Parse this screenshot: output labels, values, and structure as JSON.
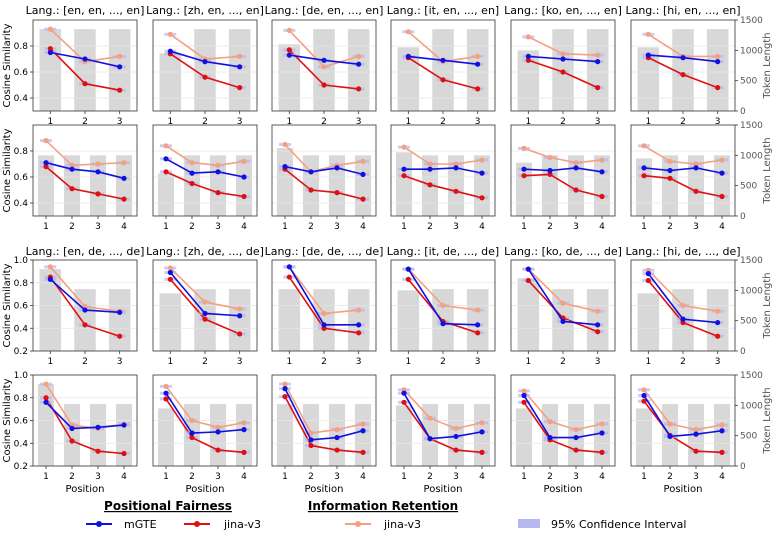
{
  "colors": {
    "mgte": "#1010e0",
    "jina_pf": "#e01010",
    "jina_ir": "#f5a080",
    "bar": "#d8d8d8",
    "ci": "#b8b8f0",
    "grid": "#e6e6e6",
    "axis": "#333333"
  },
  "labels": {
    "ylabel_left": "Cosine Similarity",
    "ylabel_right": "Token Length",
    "xlabel": "Position"
  },
  "legend": {
    "positional_fairness": "Positional Fairness",
    "information_retention": "Information Retention",
    "mgte": "mGTE",
    "jina_v3": "jina-v3",
    "jina_v3_ir": "jina-v3",
    "ci": "95% Confidence Interval"
  },
  "chart_data": [
    {
      "type": "line",
      "group": "group-1",
      "ylim_cos": [
        0.3,
        1.0
      ],
      "ylim_tokens": [
        0,
        1500
      ],
      "cos_ticks": [
        "0.4",
        "0.6",
        "0.8"
      ],
      "token_ticks": [
        "0",
        "500",
        "1000",
        "1500"
      ],
      "panels": [
        {
          "title": "Lang.: [en, en, ..., en]",
          "rows": [
            {
              "x": [
                1,
                2,
                3
              ],
              "mgte": [
                0.75,
                0.7,
                0.64
              ],
              "jina_v3": [
                0.78,
                0.51,
                0.46
              ],
              "jina_v3_ir": [
                0.93,
                0.68,
                0.72
              ],
              "tokens": [
                1350,
                1350,
                1350
              ]
            },
            {
              "x": [
                1,
                2,
                3,
                4
              ],
              "mgte": [
                0.71,
                0.66,
                0.64,
                0.59
              ],
              "jina_v3": [
                0.68,
                0.51,
                0.47,
                0.43
              ],
              "jina_v3_ir": [
                0.88,
                0.69,
                0.7,
                0.71
              ],
              "tokens": [
                1000,
                1000,
                1000,
                1000
              ]
            }
          ]
        },
        {
          "title": "Lang.: [zh, en, ..., en]",
          "rows": [
            {
              "x": [
                1,
                2,
                3
              ],
              "mgte": [
                0.76,
                0.68,
                0.64
              ],
              "jina_v3": [
                0.74,
                0.56,
                0.48
              ],
              "jina_v3_ir": [
                0.89,
                0.7,
                0.72
              ],
              "tokens": [
                950,
                1350,
                1350
              ]
            },
            {
              "x": [
                1,
                2,
                3,
                4
              ],
              "mgte": [
                0.74,
                0.63,
                0.64,
                0.6
              ],
              "jina_v3": [
                0.64,
                0.55,
                0.48,
                0.45
              ],
              "jina_v3_ir": [
                0.84,
                0.71,
                0.69,
                0.72
              ],
              "tokens": [
                700,
                1000,
                1000,
                1000
              ]
            }
          ]
        },
        {
          "title": "Lang.: [de, en, ..., en]",
          "rows": [
            {
              "x": [
                1,
                2,
                3
              ],
              "mgte": [
                0.73,
                0.69,
                0.66
              ],
              "jina_v3": [
                0.77,
                0.5,
                0.47
              ],
              "jina_v3_ir": [
                0.92,
                0.64,
                0.72
              ],
              "tokens": [
                1100,
                1350,
                1350
              ]
            },
            {
              "x": [
                1,
                2,
                3,
                4
              ],
              "mgte": [
                0.68,
                0.64,
                0.67,
                0.62
              ],
              "jina_v3": [
                0.66,
                0.5,
                0.48,
                0.43
              ],
              "jina_v3_ir": [
                0.85,
                0.64,
                0.69,
                0.72
              ],
              "tokens": [
                1120,
                1000,
                1000,
                1000
              ]
            }
          ]
        },
        {
          "title": "Lang.: [it, en, ..., en]",
          "rows": [
            {
              "x": [
                1,
                2,
                3
              ],
              "mgte": [
                0.72,
                0.69,
                0.66
              ],
              "jina_v3": [
                0.71,
                0.54,
                0.47
              ],
              "jina_v3_ir": [
                0.91,
                0.68,
                0.72
              ],
              "tokens": [
                1050,
                1350,
                1350
              ]
            },
            {
              "x": [
                1,
                2,
                3,
                4
              ],
              "mgte": [
                0.66,
                0.66,
                0.67,
                0.63
              ],
              "jina_v3": [
                0.61,
                0.54,
                0.49,
                0.44
              ],
              "jina_v3_ir": [
                0.83,
                0.7,
                0.7,
                0.73
              ],
              "tokens": [
                1050,
                1000,
                1000,
                1000
              ]
            }
          ]
        },
        {
          "title": "Lang.: [ko, en, ..., en]",
          "rows": [
            {
              "x": [
                1,
                2,
                3
              ],
              "mgte": [
                0.72,
                0.7,
                0.68
              ],
              "jina_v3": [
                0.69,
                0.6,
                0.48
              ],
              "jina_v3_ir": [
                0.87,
                0.74,
                0.73
              ],
              "tokens": [
                1000,
                1350,
                1350
              ]
            },
            {
              "x": [
                1,
                2,
                3,
                4
              ],
              "mgte": [
                0.66,
                0.65,
                0.67,
                0.64
              ],
              "jina_v3": [
                0.61,
                0.62,
                0.5,
                0.45
              ],
              "jina_v3_ir": [
                0.82,
                0.75,
                0.71,
                0.73
              ],
              "tokens": [
                880,
                1000,
                1000,
                1000
              ]
            }
          ]
        },
        {
          "title": "Lang.: [hi, en, ..., en]",
          "rows": [
            {
              "x": [
                1,
                2,
                3
              ],
              "mgte": [
                0.73,
                0.71,
                0.68
              ],
              "jina_v3": [
                0.71,
                0.58,
                0.48
              ],
              "jina_v3_ir": [
                0.89,
                0.72,
                0.72
              ],
              "tokens": [
                1050,
                1350,
                1350
              ]
            },
            {
              "x": [
                1,
                2,
                3,
                4
              ],
              "mgte": [
                0.67,
                0.65,
                0.67,
                0.63
              ],
              "jina_v3": [
                0.61,
                0.59,
                0.49,
                0.45
              ],
              "jina_v3_ir": [
                0.84,
                0.72,
                0.7,
                0.73
              ],
              "tokens": [
                950,
                1000,
                1000,
                1000
              ]
            }
          ]
        }
      ]
    },
    {
      "type": "line",
      "group": "group-2",
      "ylim_cos": [
        0.2,
        1.0
      ],
      "ylim_tokens": [
        0,
        1500
      ],
      "cos_ticks": [
        "0.2",
        "0.4",
        "0.6",
        "0.8",
        "1.0"
      ],
      "token_ticks": [
        "0",
        "500",
        "1000",
        "1500"
      ],
      "panels": [
        {
          "title": "Lang.: [en, de, ..., de]",
          "rows": [
            {
              "x": [
                1,
                2,
                3
              ],
              "mgte": [
                0.83,
                0.56,
                0.54
              ],
              "jina_v3": [
                0.85,
                0.43,
                0.33
              ],
              "jina_v3_ir": [
                0.94,
                0.59,
                0.55
              ],
              "tokens": [
                1350,
                1020,
                1020
              ]
            },
            {
              "x": [
                1,
                2,
                3,
                4
              ],
              "mgte": [
                0.76,
                0.53,
                0.54,
                0.56
              ],
              "jina_v3": [
                0.8,
                0.42,
                0.33,
                0.31
              ],
              "jina_v3_ir": [
                0.92,
                0.56,
                0.53,
                0.57
              ],
              "tokens": [
                1350,
                1020,
                1020,
                1020
              ]
            }
          ]
        },
        {
          "title": "Lang.: [zh, de, ..., de]",
          "rows": [
            {
              "x": [
                1,
                2,
                3
              ],
              "mgte": [
                0.89,
                0.53,
                0.51
              ],
              "jina_v3": [
                0.83,
                0.48,
                0.35
              ],
              "jina_v3_ir": [
                0.93,
                0.63,
                0.57
              ],
              "tokens": [
                950,
                1020,
                1020
              ]
            },
            {
              "x": [
                1,
                2,
                3,
                4
              ],
              "mgte": [
                0.84,
                0.49,
                0.5,
                0.52
              ],
              "jina_v3": [
                0.79,
                0.45,
                0.34,
                0.32
              ],
              "jina_v3_ir": [
                0.9,
                0.6,
                0.54,
                0.58
              ],
              "tokens": [
                950,
                1020,
                1020,
                1020
              ]
            }
          ]
        },
        {
          "title": "Lang.: [de, de, ..., de]",
          "rows": [
            {
              "x": [
                1,
                2,
                3
              ],
              "mgte": [
                0.94,
                0.43,
                0.43
              ],
              "jina_v3": [
                0.85,
                0.4,
                0.36
              ],
              "jina_v3_ir": [
                0.94,
                0.53,
                0.56
              ],
              "tokens": [
                1020,
                1020,
                1020
              ]
            },
            {
              "x": [
                1,
                2,
                3,
                4
              ],
              "mgte": [
                0.88,
                0.43,
                0.45,
                0.51
              ],
              "jina_v3": [
                0.81,
                0.38,
                0.34,
                0.32
              ],
              "jina_v3_ir": [
                0.92,
                0.49,
                0.52,
                0.57
              ],
              "tokens": [
                1020,
                1020,
                1020,
                1020
              ]
            }
          ]
        },
        {
          "title": "Lang.: [it, de, ..., de]",
          "rows": [
            {
              "x": [
                1,
                2,
                3
              ],
              "mgte": [
                0.92,
                0.44,
                0.43
              ],
              "jina_v3": [
                0.83,
                0.46,
                0.36
              ],
              "jina_v3_ir": [
                0.92,
                0.6,
                0.56
              ],
              "tokens": [
                1000,
                1020,
                1020
              ]
            },
            {
              "x": [
                1,
                2,
                3,
                4
              ],
              "mgte": [
                0.84,
                0.44,
                0.46,
                0.5
              ],
              "jina_v3": [
                0.76,
                0.44,
                0.34,
                0.32
              ],
              "jina_v3_ir": [
                0.87,
                0.62,
                0.53,
                0.58
              ],
              "tokens": [
                1000,
                1020,
                1020,
                1020
              ]
            }
          ]
        },
        {
          "title": "Lang.: [ko, de, ..., de]",
          "rows": [
            {
              "x": [
                1,
                2,
                3
              ],
              "mgte": [
                0.92,
                0.46,
                0.43
              ],
              "jina_v3": [
                0.82,
                0.49,
                0.37
              ],
              "jina_v3_ir": [
                0.92,
                0.62,
                0.55
              ],
              "tokens": [
                1200,
                1020,
                1020
              ]
            },
            {
              "x": [
                1,
                2,
                3,
                4
              ],
              "mgte": [
                0.82,
                0.45,
                0.45,
                0.49
              ],
              "jina_v3": [
                0.76,
                0.43,
                0.34,
                0.32
              ],
              "jina_v3_ir": [
                0.86,
                0.59,
                0.52,
                0.57
              ],
              "tokens": [
                950,
                1020,
                1020,
                1020
              ]
            }
          ]
        },
        {
          "title": "Lang.: [hi, de, ..., de]",
          "rows": [
            {
              "x": [
                1,
                2,
                3
              ],
              "mgte": [
                0.88,
                0.48,
                0.45
              ],
              "jina_v3": [
                0.82,
                0.45,
                0.33
              ],
              "jina_v3_ir": [
                0.91,
                0.6,
                0.55
              ],
              "tokens": [
                950,
                1020,
                1020
              ]
            },
            {
              "x": [
                1,
                2,
                3,
                4
              ],
              "mgte": [
                0.82,
                0.46,
                0.48,
                0.51
              ],
              "jina_v3": [
                0.77,
                0.47,
                0.33,
                0.32
              ],
              "jina_v3_ir": [
                0.87,
                0.57,
                0.52,
                0.56
              ],
              "tokens": [
                950,
                1020,
                1020,
                1020
              ]
            }
          ]
        }
      ]
    }
  ]
}
